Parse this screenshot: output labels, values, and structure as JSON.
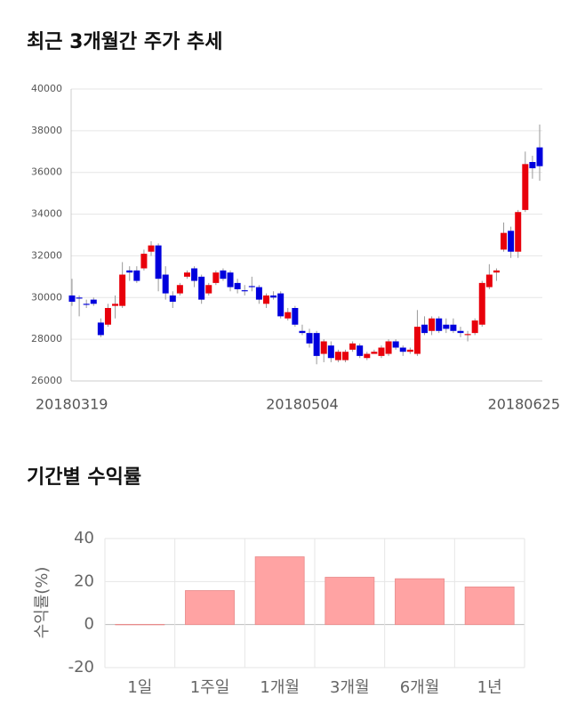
{
  "chart_data": [
    {
      "type": "candlestick",
      "title": "최근 3개월간 주가 추세",
      "categories": [
        "20180319",
        null,
        null,
        null,
        null,
        null,
        null,
        null,
        null,
        null,
        null,
        null,
        null,
        null,
        null,
        null,
        null,
        null,
        null,
        null,
        null,
        null,
        null,
        null,
        null,
        null,
        null,
        null,
        null,
        null,
        null,
        null,
        "20180504",
        null,
        null,
        null,
        null,
        null,
        null,
        null,
        null,
        null,
        null,
        null,
        null,
        null,
        null,
        null,
        null,
        null,
        null,
        null,
        null,
        null,
        null,
        null,
        null,
        null,
        null,
        null,
        null,
        null,
        null,
        null,
        null,
        "20180625"
      ],
      "open": [
        30100,
        30000,
        29700,
        29900,
        28800,
        28700,
        29600,
        29600,
        31300,
        31300,
        31400,
        32200,
        32500,
        31100,
        30100,
        30200,
        31000,
        31400,
        31000,
        30200,
        30700,
        31300,
        31200,
        30700,
        30350,
        30550,
        30500,
        29700,
        30100,
        30200,
        29000,
        29500,
        28400,
        28300,
        28300,
        27300,
        27700,
        27000,
        27000,
        27500,
        27700,
        27100,
        27300,
        27200,
        27300,
        27900,
        27600,
        27400,
        27300,
        28700,
        28400,
        29000,
        28700,
        28700,
        28400,
        28200,
        28300,
        28700,
        30500,
        31200,
        32300,
        33200,
        32200,
        34200,
        36500,
        37200
      ],
      "close": [
        29800,
        29950,
        29650,
        29700,
        28200,
        29500,
        29700,
        31100,
        31200,
        30800,
        32100,
        32500,
        30900,
        30200,
        29800,
        30600,
        31200,
        30800,
        29900,
        30600,
        31200,
        30900,
        30500,
        30400,
        30300,
        30500,
        29900,
        30100,
        30000,
        29100,
        29300,
        28700,
        28300,
        27800,
        27200,
        27900,
        27100,
        27400,
        27400,
        27800,
        27200,
        27300,
        27400,
        27600,
        27900,
        27600,
        27400,
        27500,
        28600,
        28300,
        29000,
        28400,
        28500,
        28400,
        28300,
        28250,
        28900,
        30700,
        31100,
        31300,
        33100,
        32200,
        34100,
        36400,
        36200,
        36300
      ],
      "high": [
        30900,
        30100,
        29900,
        30000,
        29000,
        29700,
        30100,
        31700,
        31500,
        31500,
        32300,
        32700,
        32600,
        31500,
        30300,
        30700,
        31300,
        31500,
        31100,
        30700,
        31300,
        31400,
        31300,
        30900,
        30600,
        31000,
        30600,
        30200,
        30300,
        30300,
        29500,
        29600,
        28700,
        28500,
        28400,
        28000,
        27900,
        27500,
        27500,
        27900,
        27800,
        27400,
        27500,
        27700,
        28000,
        28000,
        27700,
        27600,
        29400,
        29100,
        29100,
        29100,
        29000,
        29000,
        28600,
        28400,
        29000,
        30800,
        31600,
        31400,
        33600,
        33400,
        34200,
        37000,
        36800,
        38300
      ],
      "low": [
        29600,
        29100,
        29500,
        29600,
        28100,
        28600,
        29000,
        29500,
        30800,
        30700,
        31300,
        32000,
        30300,
        29900,
        29500,
        30100,
        30900,
        30500,
        29700,
        30100,
        30600,
        30800,
        30300,
        30200,
        30100,
        30300,
        29700,
        29500,
        29900,
        29000,
        28900,
        28600,
        28200,
        27600,
        26800,
        26900,
        26900,
        26900,
        26900,
        27400,
        27100,
        27000,
        27300,
        27100,
        27200,
        27500,
        27200,
        27300,
        27200,
        28200,
        28200,
        28300,
        28300,
        28300,
        28100,
        27900,
        28200,
        28600,
        30400,
        30800,
        32200,
        31900,
        31900,
        34100,
        35700,
        35600
      ],
      "up_color": "#e8000b",
      "down_color": "#0000dd",
      "ylim": [
        26000,
        40000
      ],
      "yticks": [
        26000,
        28000,
        30000,
        32000,
        34000,
        36000,
        38000,
        40000
      ],
      "grid": true
    },
    {
      "type": "bar",
      "title": "기간별 수익률",
      "ylabel": "수익률(%)",
      "categories": [
        "1일",
        "1주일",
        "1개월",
        "3개월",
        "6개월",
        "1년"
      ],
      "values": [
        0.1,
        15.8,
        31.5,
        22,
        21.3,
        17.5
      ],
      "color": "#ffa3a3",
      "ylim": [
        -20,
        40
      ],
      "yticks": [
        -20,
        0,
        20,
        40
      ],
      "grid": true
    }
  ]
}
